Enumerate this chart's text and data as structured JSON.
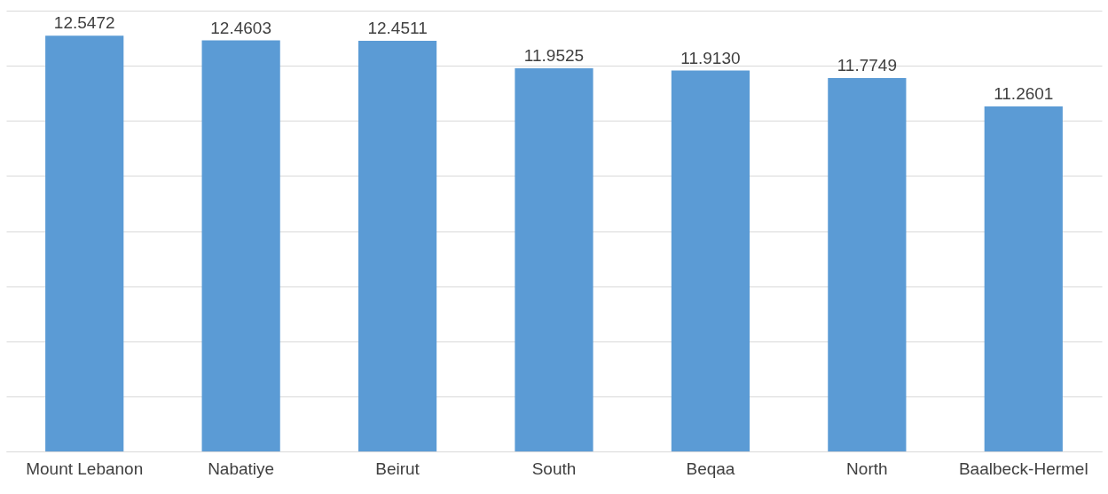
{
  "chart_data": {
    "type": "bar",
    "categories": [
      "Mount Lebanon",
      "Nabatiye",
      "Beirut",
      "South",
      "Beqaa",
      "North",
      "Baalbeck-Hermel"
    ],
    "values": [
      12.5472,
      12.4603,
      12.4511,
      11.9525,
      11.913,
      11.7749,
      11.2601
    ],
    "value_labels": [
      "12.5472",
      "12.4603",
      "12.4511",
      "11.9525",
      "11.9130",
      "11.7749",
      "11.2601"
    ],
    "color": "#5b9bd5",
    "ylim": [
      5,
      13
    ],
    "tick_labels": "x",
    "grid": "y"
  }
}
